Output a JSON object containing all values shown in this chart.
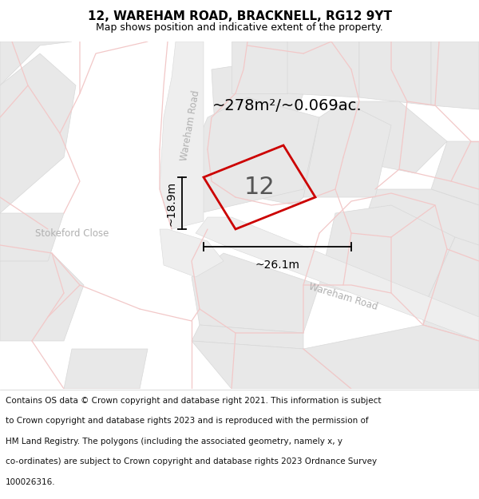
{
  "title": "12, WAREHAM ROAD, BRACKNELL, RG12 9YT",
  "subtitle": "Map shows position and indicative extent of the property.",
  "area_text": "~278m²/~0.069ac.",
  "label_number": "12",
  "dim_width": "~26.1m",
  "dim_height": "~18.9m",
  "footer_lines": [
    "Contains OS data © Crown copyright and database right 2021. This information is subject",
    "to Crown copyright and database rights 2023 and is reproduced with the permission of",
    "HM Land Registry. The polygons (including the associated geometry, namely x, y",
    "co-ordinates) are subject to Crown copyright and database rights 2023 Ordnance Survey",
    "100026316."
  ],
  "map_bg": "#f5f5f5",
  "block_color": "#e8e8e8",
  "block_edge": "#d8d8d8",
  "road_color": "#f2c8c8",
  "property_color": "#cc0000",
  "property_lw": 2.0,
  "title_fontsize": 11,
  "subtitle_fontsize": 9,
  "footer_fontsize": 7.5,
  "area_fontsize": 14,
  "number_fontsize": 22,
  "dim_label_fontsize": 10,
  "street_label_fontsize": 8.5,
  "street_label_color": "#b0b0b0"
}
